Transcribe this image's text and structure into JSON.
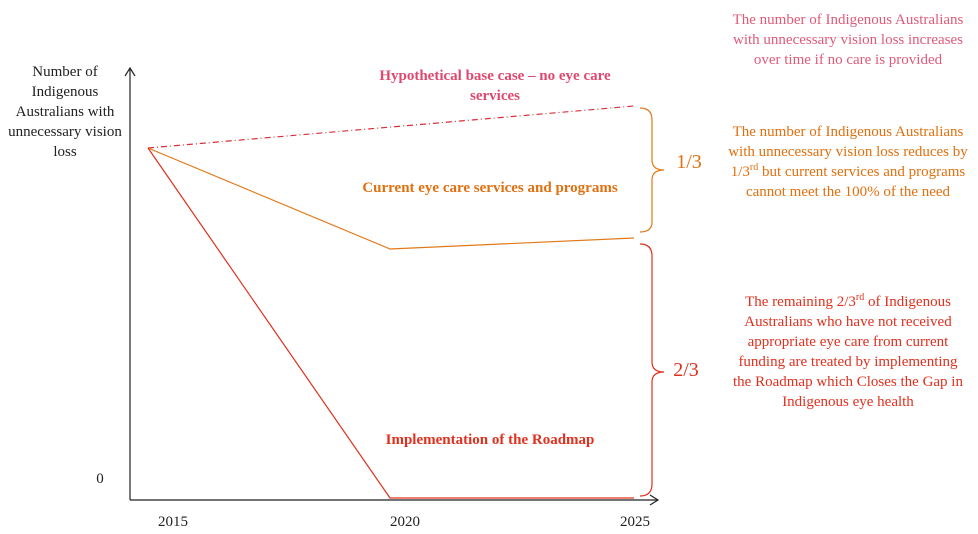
{
  "diagram": {
    "y_axis_label": "Number of Indigenous Australians with unnecessary vision loss",
    "y_origin_label": "0",
    "x_labels": [
      "2015",
      "2020",
      "2025"
    ],
    "lines": [
      {
        "label": "Hypothetical base case – no eye care services"
      },
      {
        "label": "Current eye care services and programs"
      },
      {
        "label": "Implementation of the Roadmap"
      }
    ],
    "brackets": [
      "1/3",
      "2/3"
    ],
    "annotations": [
      {
        "parts": [
          "The number of Indigenous Australians with unnecessary vision loss increases over time if no care is provided"
        ]
      },
      {
        "parts": [
          "The number of Indigenous Australians with unnecessary vision loss reduces by 1/3",
          "rd",
          " but current services and programs cannot meet the 100% of the need"
        ]
      },
      {
        "parts": [
          "The remaining 2/3",
          "rd",
          " of Indigenous Australians who have not received appropriate eye care from current funding are treated by implementing the Roadmap which Closes the Gap in Indigenous eye health"
        ]
      }
    ]
  }
}
